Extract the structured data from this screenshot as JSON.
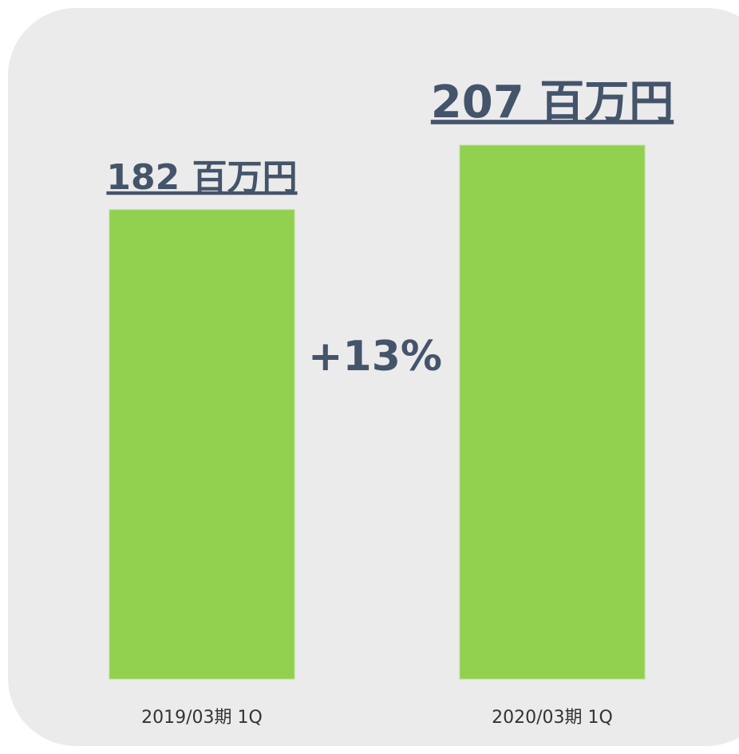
{
  "chart_data": {
    "type": "bar",
    "categories": [
      "2019/03期 1Q",
      "2020/03期 1Q"
    ],
    "values": [
      182,
      207
    ],
    "value_labels": [
      "182 百万円",
      "207 百万円"
    ],
    "annotation": "+13%",
    "color": "#92d050"
  }
}
